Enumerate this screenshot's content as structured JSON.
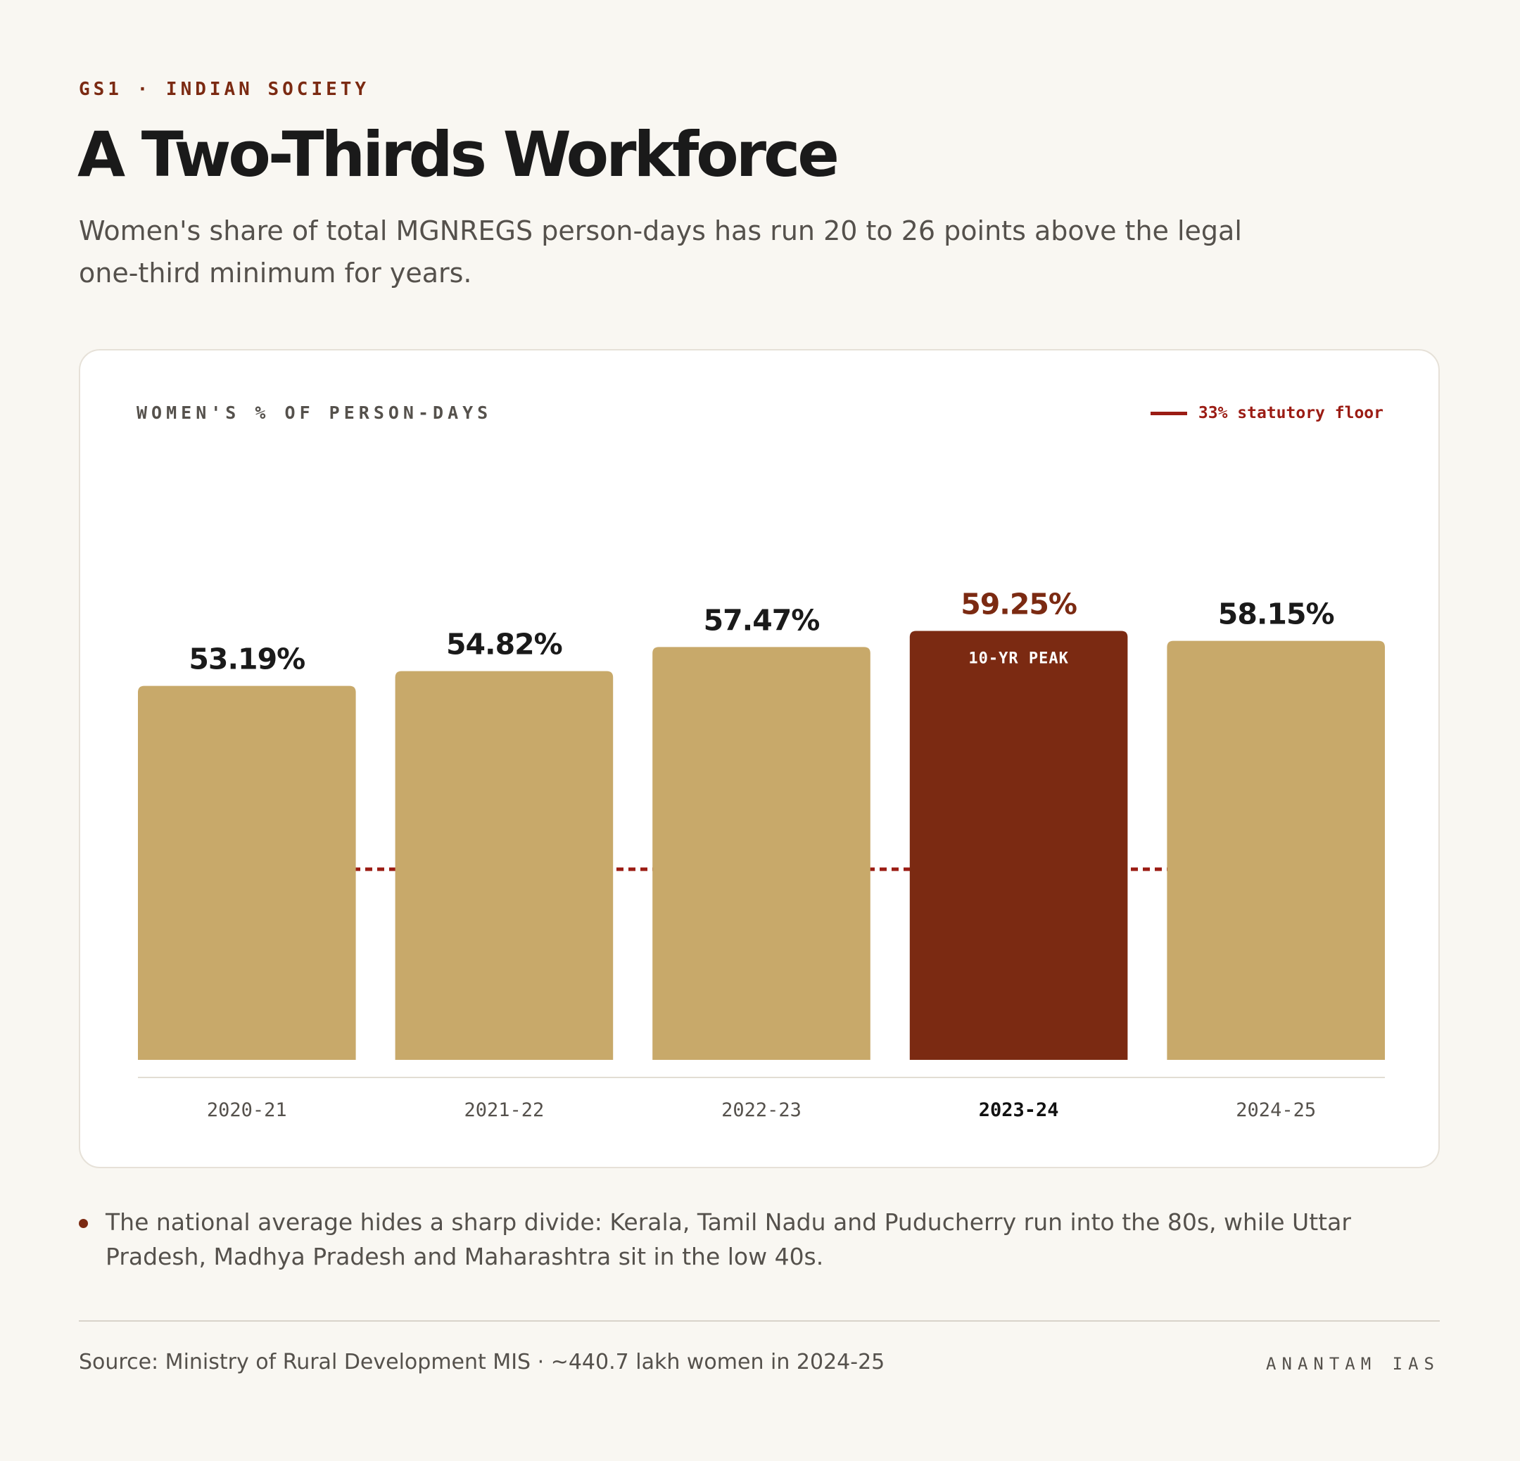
{
  "header": {
    "kicker": "GS1 · INDIAN SOCIETY",
    "title": "A Two-Thirds Workforce",
    "subtitle": "Women's share of total MGNREGS person-days has run 20 to 26 points above the legal one-third minimum for years."
  },
  "chart_data": {
    "type": "bar",
    "title": "WOMEN'S % OF PERSON-DAYS",
    "categories": [
      "2020-21",
      "2021-22",
      "2022-23",
      "2023-24",
      "2024-25"
    ],
    "values": [
      53.19,
      54.82,
      57.47,
      59.25,
      58.15
    ],
    "value_labels": [
      "53.19%",
      "54.82%",
      "57.47%",
      "59.25%",
      "58.15%"
    ],
    "unit": "%",
    "ylim": [
      0,
      60
    ],
    "grid": false,
    "highlight": {
      "index": 3,
      "label": "10-YR PEAK"
    },
    "reference_line": {
      "value": 33,
      "label": "33% statutory floor",
      "style": "dashed"
    },
    "legend_position": "top-right",
    "colors": {
      "bar": "#c8a96a",
      "highlight": "#7b2a12",
      "reference": "#9b1c14"
    }
  },
  "note": "The national average hides a sharp divide: Kerala, Tamil Nadu and Puducherry run into the 80s, while Uttar Pradesh, Madhya Pradesh and Maharashtra sit in the low 40s.",
  "footer": {
    "source": "Source: Ministry of Rural Development MIS · ~440.7 lakh women in 2024-25",
    "brand": "ANANTAM IAS"
  }
}
